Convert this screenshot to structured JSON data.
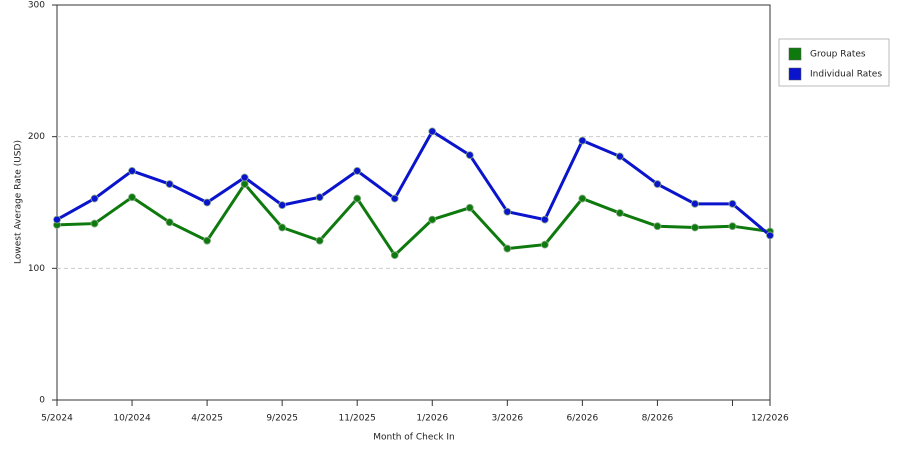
{
  "chart_data": {
    "type": "line",
    "x_label": "Month of Check In",
    "y_label": "Lowest Average Rate (USD)",
    "categories": [
      "5/2024",
      null,
      "10/2024",
      null,
      "4/2025",
      null,
      "9/2025",
      null,
      "11/2025",
      null,
      "1/2026",
      null,
      "3/2026",
      null,
      "6/2026",
      null,
      "8/2026",
      null,
      null,
      "12/2026"
    ],
    "series": [
      {
        "name": "Group Rates",
        "color": "#0e7a0e",
        "values": [
          133,
          134,
          154,
          135,
          121,
          164,
          131,
          121,
          153,
          110,
          137,
          146,
          115,
          118,
          153,
          142,
          132,
          131,
          132,
          128
        ]
      },
      {
        "name": "Individual Rates",
        "color": "#0a14cc",
        "values": [
          137,
          153,
          174,
          164,
          150,
          169,
          148,
          154,
          174,
          153,
          204,
          186,
          143,
          137,
          197,
          185,
          164,
          149,
          149,
          125
        ]
      }
    ],
    "ylim": [
      0,
      300
    ],
    "yticks": [
      0,
      100,
      200,
      300
    ],
    "grid": true,
    "legend": "right"
  }
}
